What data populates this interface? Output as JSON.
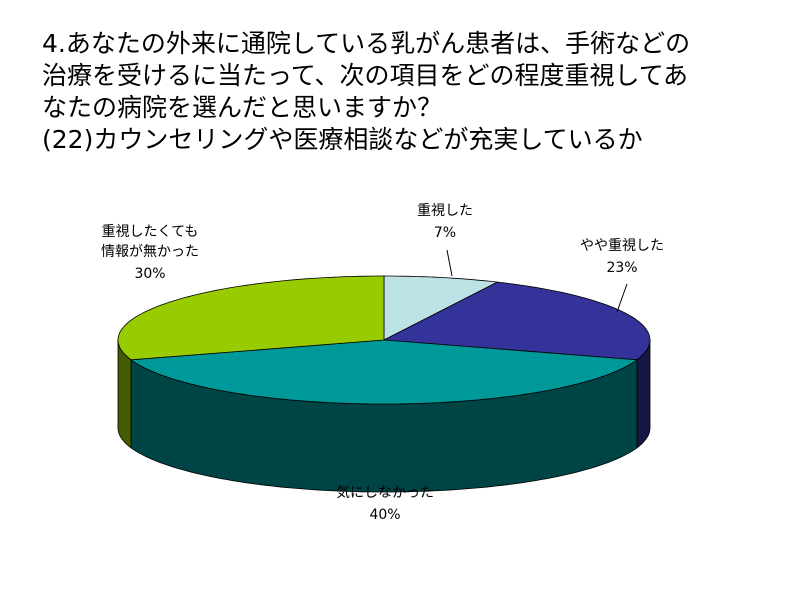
{
  "chart_data": {
    "type": "pie3d",
    "title_lines": [
      "4.あなたの外来に通院している乳がん患者は、手術などの",
      "治療を受けるに当たって、次の項目をどの程度重視してあ",
      "なたの病院を選んだと思いますか？",
      "(22)カウンセリングや医療相談などが充実しているか"
    ],
    "categories": [
      "重視した",
      "やや重視した",
      "気にしなかった",
      "重視したくても\n情報が無かった"
    ],
    "values": [
      7,
      23,
      40,
      30
    ],
    "value_labels": [
      "7%",
      "23%",
      "40%",
      "30%"
    ],
    "colors": [
      "#bde2e6",
      "#333399",
      "#009999",
      "#99cc00"
    ]
  }
}
